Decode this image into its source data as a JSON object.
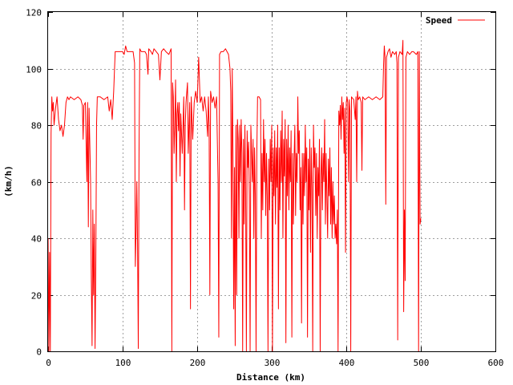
{
  "chart_data": {
    "type": "line",
    "title": "",
    "xlabel": "Distance (km)",
    "ylabel": "(km/h)",
    "xlim": [
      0,
      600
    ],
    "ylim": [
      0,
      120
    ],
    "x_ticks": [
      0,
      100,
      200,
      300,
      400,
      500,
      600
    ],
    "y_ticks": [
      0,
      20,
      40,
      60,
      80,
      100,
      120
    ],
    "grid": true,
    "legend_position": "top-right",
    "series": [
      {
        "name": "Speed",
        "color": "#ff0000",
        "points": [
          [
            0,
            40
          ],
          [
            1,
            0
          ],
          [
            2,
            35
          ],
          [
            3,
            0
          ],
          [
            4,
            77
          ],
          [
            5,
            90
          ],
          [
            6,
            85
          ],
          [
            7,
            88
          ],
          [
            8,
            80
          ],
          [
            10,
            86
          ],
          [
            12,
            90
          ],
          [
            14,
            82
          ],
          [
            16,
            78
          ],
          [
            18,
            80
          ],
          [
            20,
            76
          ],
          [
            22,
            80
          ],
          [
            24,
            88
          ],
          [
            26,
            90
          ],
          [
            28,
            89
          ],
          [
            30,
            90
          ],
          [
            35,
            89
          ],
          [
            40,
            90
          ],
          [
            44,
            89
          ],
          [
            46,
            87
          ],
          [
            47,
            75
          ],
          [
            48,
            87
          ],
          [
            50,
            88
          ],
          [
            52,
            60
          ],
          [
            53,
            88
          ],
          [
            54,
            44
          ],
          [
            55,
            86
          ],
          [
            57,
            60
          ],
          [
            58,
            25
          ],
          [
            59,
            2
          ],
          [
            60,
            50
          ],
          [
            61,
            20
          ],
          [
            62,
            45
          ],
          [
            63,
            1
          ],
          [
            64,
            30
          ],
          [
            65,
            80
          ],
          [
            66,
            90
          ],
          [
            70,
            90
          ],
          [
            75,
            89
          ],
          [
            80,
            90
          ],
          [
            82,
            85
          ],
          [
            84,
            89
          ],
          [
            86,
            82
          ],
          [
            88,
            92
          ],
          [
            90,
            106
          ],
          [
            95,
            106
          ],
          [
            100,
            106
          ],
          [
            102,
            105
          ],
          [
            104,
            108
          ],
          [
            106,
            106
          ],
          [
            110,
            106
          ],
          [
            114,
            106
          ],
          [
            116,
            102
          ],
          [
            117,
            30
          ],
          [
            118,
            42
          ],
          [
            119,
            60
          ],
          [
            120,
            38
          ],
          [
            121,
            1
          ],
          [
            122,
            70
          ],
          [
            123,
            107
          ],
          [
            125,
            106
          ],
          [
            130,
            106
          ],
          [
            132,
            105
          ],
          [
            134,
            98
          ],
          [
            135,
            107
          ],
          [
            138,
            106
          ],
          [
            140,
            105
          ],
          [
            142,
            107
          ],
          [
            145,
            106
          ],
          [
            148,
            105
          ],
          [
            150,
            96
          ],
          [
            152,
            106
          ],
          [
            155,
            107
          ],
          [
            158,
            106
          ],
          [
            162,
            105
          ],
          [
            165,
            107
          ],
          [
            166,
            0
          ],
          [
            167,
            95
          ],
          [
            168,
            90
          ],
          [
            169,
            70
          ],
          [
            170,
            80
          ],
          [
            171,
            96
          ],
          [
            172,
            60
          ],
          [
            173,
            84
          ],
          [
            174,
            88
          ],
          [
            175,
            78
          ],
          [
            176,
            88
          ],
          [
            177,
            62
          ],
          [
            178,
            84
          ],
          [
            180,
            70
          ],
          [
            182,
            90
          ],
          [
            183,
            50
          ],
          [
            184,
            80
          ],
          [
            185,
            88
          ],
          [
            187,
            95
          ],
          [
            188,
            70
          ],
          [
            190,
            88
          ],
          [
            191,
            15
          ],
          [
            192,
            90
          ],
          [
            194,
            75
          ],
          [
            196,
            88
          ],
          [
            198,
            92
          ],
          [
            200,
            88
          ],
          [
            202,
            104
          ],
          [
            204,
            88
          ],
          [
            206,
            90
          ],
          [
            208,
            85
          ],
          [
            210,
            90
          ],
          [
            212,
            85
          ],
          [
            214,
            76
          ],
          [
            215,
            90
          ],
          [
            216,
            80
          ],
          [
            217,
            20
          ],
          [
            218,
            92
          ],
          [
            220,
            88
          ],
          [
            222,
            90
          ],
          [
            224,
            86
          ],
          [
            226,
            90
          ],
          [
            228,
            60
          ],
          [
            229,
            5
          ],
          [
            230,
            105
          ],
          [
            232,
            106
          ],
          [
            235,
            106
          ],
          [
            238,
            107
          ],
          [
            240,
            106
          ],
          [
            242,
            105
          ],
          [
            244,
            100
          ],
          [
            245,
            92
          ],
          [
            246,
            40
          ],
          [
            247,
            100
          ],
          [
            248,
            70
          ],
          [
            249,
            15
          ],
          [
            250,
            65
          ],
          [
            251,
            2
          ],
          [
            252,
            80
          ],
          [
            253,
            20
          ],
          [
            254,
            82
          ],
          [
            255,
            75
          ],
          [
            256,
            40
          ],
          [
            257,
            80
          ],
          [
            258,
            60
          ],
          [
            259,
            82
          ],
          [
            260,
            70
          ],
          [
            261,
            0
          ],
          [
            262,
            75
          ],
          [
            263,
            45
          ],
          [
            264,
            80
          ],
          [
            265,
            55
          ],
          [
            266,
            0
          ],
          [
            267,
            78
          ],
          [
            268,
            65
          ],
          [
            269,
            74
          ],
          [
            270,
            55
          ],
          [
            271,
            0
          ],
          [
            272,
            80
          ],
          [
            274,
            60
          ],
          [
            275,
            75
          ],
          [
            276,
            40
          ],
          [
            277,
            72
          ],
          [
            278,
            55
          ],
          [
            279,
            0
          ],
          [
            280,
            70
          ],
          [
            281,
            90
          ],
          [
            283,
            90
          ],
          [
            285,
            89
          ],
          [
            286,
            40
          ],
          [
            287,
            70
          ],
          [
            288,
            50
          ],
          [
            289,
            82
          ],
          [
            290,
            60
          ],
          [
            291,
            75
          ],
          [
            292,
            48
          ],
          [
            293,
            70
          ],
          [
            294,
            55
          ],
          [
            295,
            0
          ],
          [
            296,
            68
          ],
          [
            297,
            50
          ],
          [
            298,
            75
          ],
          [
            299,
            60
          ],
          [
            300,
            80
          ],
          [
            301,
            0
          ],
          [
            302,
            72
          ],
          [
            303,
            55
          ],
          [
            304,
            78
          ],
          [
            305,
            45
          ],
          [
            306,
            72
          ],
          [
            307,
            58
          ],
          [
            308,
            80
          ],
          [
            309,
            15
          ],
          [
            310,
            72
          ],
          [
            311,
            50
          ],
          [
            312,
            78
          ],
          [
            313,
            60
          ],
          [
            314,
            85
          ],
          [
            315,
            40
          ],
          [
            316,
            75
          ],
          [
            317,
            62
          ],
          [
            318,
            82
          ],
          [
            319,
            3
          ],
          [
            320,
            75
          ],
          [
            321,
            55
          ],
          [
            322,
            80
          ],
          [
            323,
            50
          ],
          [
            324,
            72
          ],
          [
            325,
            60
          ],
          [
            326,
            78
          ],
          [
            327,
            5
          ],
          [
            328,
            70
          ],
          [
            329,
            45
          ],
          [
            330,
            68
          ],
          [
            331,
            80
          ],
          [
            332,
            48
          ],
          [
            333,
            70
          ],
          [
            334,
            60
          ],
          [
            335,
            90
          ],
          [
            336,
            70
          ],
          [
            337,
            78
          ],
          [
            338,
            50
          ],
          [
            339,
            65
          ],
          [
            340,
            10
          ],
          [
            341,
            70
          ],
          [
            342,
            45
          ],
          [
            343,
            70
          ],
          [
            344,
            55
          ],
          [
            345,
            80
          ],
          [
            346,
            60
          ],
          [
            347,
            72
          ],
          [
            348,
            5
          ],
          [
            349,
            68
          ],
          [
            350,
            50
          ],
          [
            351,
            75
          ],
          [
            352,
            35
          ],
          [
            353,
            72
          ],
          [
            354,
            58
          ],
          [
            355,
            0
          ],
          [
            356,
            80
          ],
          [
            357,
            65
          ],
          [
            358,
            72
          ],
          [
            359,
            48
          ],
          [
            360,
            70
          ],
          [
            361,
            40
          ],
          [
            362,
            65
          ],
          [
            363,
            55
          ],
          [
            364,
            75
          ],
          [
            365,
            0
          ],
          [
            366,
            62
          ],
          [
            367,
            72
          ],
          [
            368,
            50
          ],
          [
            369,
            70
          ],
          [
            370,
            60
          ],
          [
            371,
            82
          ],
          [
            372,
            45
          ],
          [
            373,
            70
          ],
          [
            374,
            55
          ],
          [
            375,
            40
          ],
          [
            376,
            68
          ],
          [
            377,
            55
          ],
          [
            378,
            72
          ],
          [
            379,
            45
          ],
          [
            380,
            65
          ],
          [
            381,
            40
          ],
          [
            382,
            60
          ],
          [
            383,
            45
          ],
          [
            384,
            55
          ],
          [
            385,
            40
          ],
          [
            386,
            45
          ],
          [
            387,
            38
          ],
          [
            388,
            50
          ],
          [
            389,
            0
          ],
          [
            390,
            85
          ],
          [
            391,
            80
          ],
          [
            392,
            87
          ],
          [
            393,
            75
          ],
          [
            394,
            90
          ],
          [
            395,
            82
          ],
          [
            396,
            88
          ],
          [
            397,
            70
          ],
          [
            398,
            86
          ],
          [
            399,
            35
          ],
          [
            400,
            88
          ],
          [
            401,
            90
          ],
          [
            402,
            88
          ],
          [
            403,
            60
          ],
          [
            404,
            89
          ],
          [
            405,
            85
          ],
          [
            406,
            0
          ],
          [
            407,
            90
          ],
          [
            410,
            89
          ],
          [
            412,
            82
          ],
          [
            413,
            90
          ],
          [
            414,
            60
          ],
          [
            415,
            92
          ],
          [
            416,
            89
          ],
          [
            418,
            90
          ],
          [
            420,
            88
          ],
          [
            421,
            64
          ],
          [
            422,
            90
          ],
          [
            425,
            89
          ],
          [
            430,
            90
          ],
          [
            435,
            89
          ],
          [
            440,
            90
          ],
          [
            445,
            89
          ],
          [
            449,
            90
          ],
          [
            450,
            101
          ],
          [
            451,
            108
          ],
          [
            452,
            104
          ],
          [
            453,
            52
          ],
          [
            454,
            104
          ],
          [
            456,
            106
          ],
          [
            458,
            107
          ],
          [
            460,
            104
          ],
          [
            462,
            106
          ],
          [
            465,
            105
          ],
          [
            467,
            106
          ],
          [
            468,
            102
          ],
          [
            469,
            4
          ],
          [
            470,
            104
          ],
          [
            472,
            106
          ],
          [
            475,
            105
          ],
          [
            476,
            110
          ],
          [
            477,
            14
          ],
          [
            478,
            50
          ],
          [
            479,
            25
          ],
          [
            480,
            104
          ],
          [
            482,
            106
          ],
          [
            485,
            105
          ],
          [
            488,
            106
          ],
          [
            490,
            106
          ],
          [
            494,
            105
          ],
          [
            496,
            106
          ],
          [
            497,
            0
          ],
          [
            498,
            106
          ],
          [
            499,
            45
          ],
          [
            500,
            47
          ]
        ]
      }
    ]
  }
}
